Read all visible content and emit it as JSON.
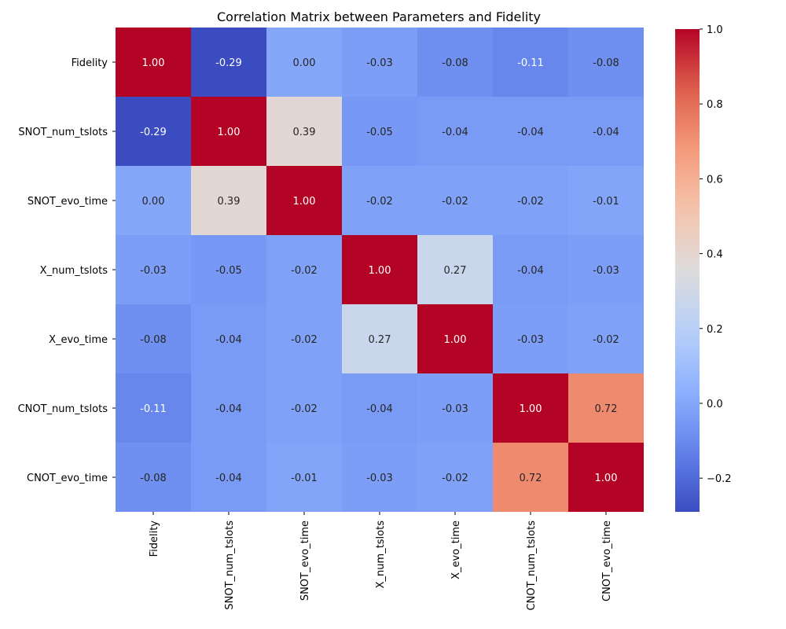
{
  "chart_data": {
    "type": "heatmap",
    "title": "Correlation Matrix between Parameters and Fidelity",
    "row_labels": [
      "Fidelity",
      "SNOT_num_tslots",
      "SNOT_evo_time",
      "X_num_tslots",
      "X_evo_time",
      "CNOT_num_tslots",
      "CNOT_evo_time"
    ],
    "col_labels": [
      "Fidelity",
      "SNOT_num_tslots",
      "SNOT_evo_time",
      "X_num_tslots",
      "X_evo_time",
      "CNOT_num_tslots",
      "CNOT_evo_time"
    ],
    "values": [
      [
        1.0,
        -0.29,
        0.0,
        -0.03,
        -0.08,
        -0.11,
        -0.08
      ],
      [
        -0.29,
        1.0,
        0.39,
        -0.05,
        -0.04,
        -0.04,
        -0.04
      ],
      [
        0.0,
        0.39,
        1.0,
        -0.02,
        -0.02,
        -0.02,
        -0.01
      ],
      [
        -0.03,
        -0.05,
        -0.02,
        1.0,
        0.27,
        -0.04,
        -0.03
      ],
      [
        -0.08,
        -0.04,
        -0.02,
        0.27,
        1.0,
        -0.03,
        -0.02
      ],
      [
        -0.11,
        -0.04,
        -0.02,
        -0.04,
        -0.03,
        1.0,
        0.72
      ],
      [
        -0.08,
        -0.04,
        -0.01,
        -0.03,
        -0.02,
        0.72,
        1.0
      ]
    ],
    "cell_labels": [
      [
        "1.00",
        "-0.29",
        "0.00",
        "-0.03",
        "-0.08",
        "-0.11",
        "-0.08"
      ],
      [
        "-0.29",
        "1.00",
        "0.39",
        "-0.05",
        "-0.04",
        "-0.04",
        "-0.04"
      ],
      [
        "0.00",
        "0.39",
        "1.00",
        "-0.02",
        "-0.02",
        "-0.02",
        "-0.01"
      ],
      [
        "-0.03",
        "-0.05",
        "-0.02",
        "1.00",
        "0.27",
        "-0.04",
        "-0.03"
      ],
      [
        "-0.08",
        "-0.04",
        "-0.02",
        "0.27",
        "1.00",
        "-0.03",
        "-0.02"
      ],
      [
        "-0.11",
        "-0.04",
        "-0.02",
        "-0.04",
        "-0.03",
        "1.00",
        "0.72"
      ],
      [
        "-0.08",
        "-0.04",
        "-0.01",
        "-0.03",
        "-0.02",
        "0.72",
        "1.00"
      ]
    ],
    "colormap": "coolwarm",
    "vmin": -0.29,
    "vmax": 1.0,
    "colorbar": {
      "ticks": [
        -0.2,
        0.0,
        0.2,
        0.4,
        0.6,
        0.8,
        1.0
      ],
      "tick_labels": [
        "−0.2",
        "0.0",
        "0.2",
        "0.4",
        "0.6",
        "0.8",
        "1.0"
      ]
    }
  }
}
